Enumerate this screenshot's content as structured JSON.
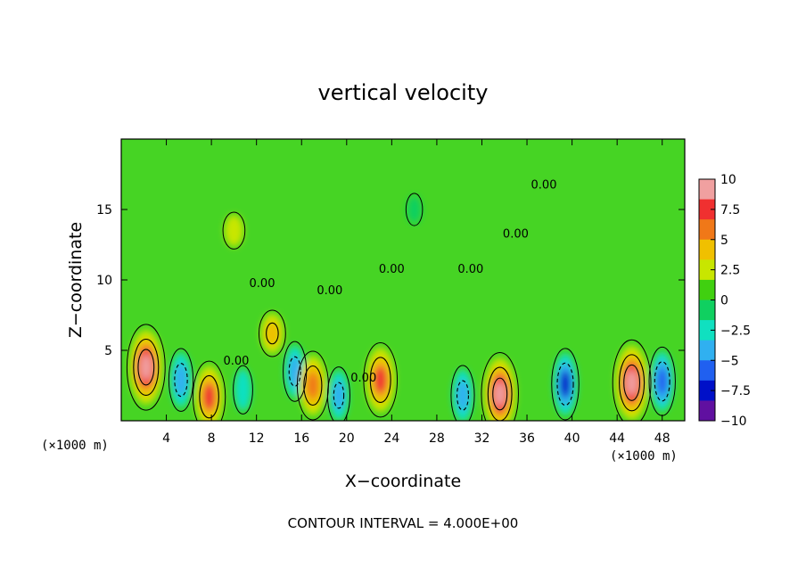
{
  "chart_data": {
    "type": "heatmap",
    "title": "vertical velocity",
    "xlabel": "X−coordinate",
    "ylabel": "Z−coordinate",
    "x_unit": "(×1000 m)",
    "z_unit": "(×1000 m)",
    "xlim": [
      0,
      50
    ],
    "ylim": [
      0,
      20
    ],
    "x_ticks": [
      "4",
      "8",
      "12",
      "16",
      "20",
      "24",
      "28",
      "32",
      "36",
      "40",
      "44",
      "48"
    ],
    "y_ticks": [
      "5",
      "10",
      "15"
    ],
    "colorbar": {
      "range": [
        -10,
        10
      ],
      "ticks": [
        "10",
        "7.5",
        "5",
        "2.5",
        "0",
        "−2.5",
        "−5",
        "−7.5",
        "−10"
      ],
      "colors": [
        "#f0a0a0",
        "#f03030",
        "#f07818",
        "#f0c000",
        "#c8e600",
        "#40d010",
        "#10d060",
        "#10e0c0",
        "#30b0f0",
        "#2060f0",
        "#0010c8",
        "#6010a0"
      ]
    },
    "contour_interval": "CONTOUR INTERVAL = 4.000E+00",
    "contour_labels": [
      "0.00",
      "0.00",
      "0.00",
      "0.00",
      "0.00",
      "0.00",
      "0.00",
      "0.00"
    ],
    "features": [
      {
        "type": "updraft",
        "x": 2.2,
        "z": 3.8,
        "value": 9.5
      },
      {
        "type": "downdraft",
        "x": 5.3,
        "z": 2.9,
        "value": -5.5
      },
      {
        "type": "updraft",
        "x": 7.8,
        "z": 1.7,
        "value": 7
      },
      {
        "type": "downdraft",
        "x": 10.8,
        "z": 2.2,
        "value": -3
      },
      {
        "type": "updraft",
        "x": 13.4,
        "z": 6.2,
        "value": 4.5
      },
      {
        "type": "downdraft",
        "x": 15.4,
        "z": 3.5,
        "value": -5
      },
      {
        "type": "updraft",
        "x": 17.0,
        "z": 2.5,
        "value": 6.5
      },
      {
        "type": "downdraft",
        "x": 19.3,
        "z": 1.8,
        "value": -4.5
      },
      {
        "type": "updraft",
        "x": 23.0,
        "z": 2.9,
        "value": 7.5
      },
      {
        "type": "downdraft",
        "x": 30.3,
        "z": 1.8,
        "value": -5
      },
      {
        "type": "updraft",
        "x": 33.6,
        "z": 1.9,
        "value": 9
      },
      {
        "type": "downdraft",
        "x": 39.4,
        "z": 2.6,
        "value": -7
      },
      {
        "type": "updraft",
        "x": 45.3,
        "z": 2.7,
        "value": 9.5
      },
      {
        "type": "downdraft",
        "x": 48.0,
        "z": 2.8,
        "value": -6.5
      },
      {
        "type": "updraft",
        "x": 10.0,
        "z": 13.5,
        "value": 2.5
      },
      {
        "type": "downdraft",
        "x": 26.0,
        "z": 15.0,
        "value": -1.5
      }
    ]
  }
}
